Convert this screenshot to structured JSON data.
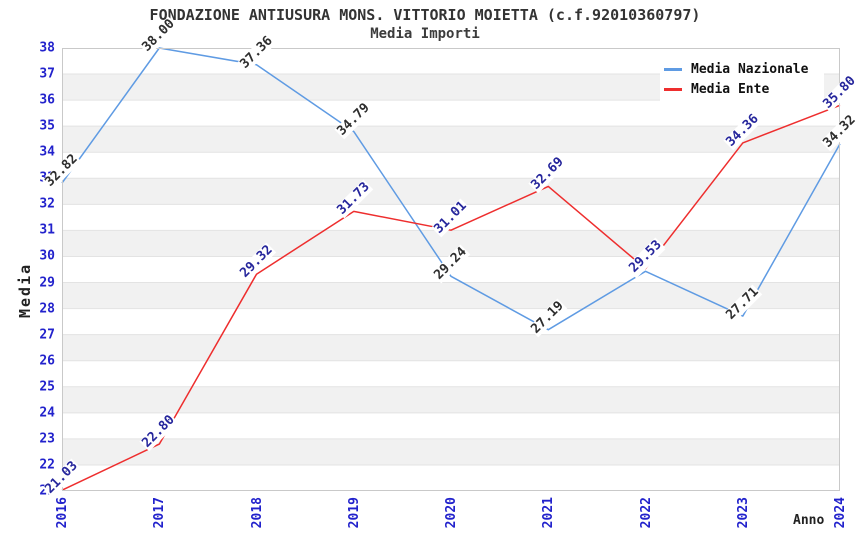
{
  "title": "FONDAZIONE ANTIUSURA MONS. VITTORIO MOIETTA (c.f.92010360797)",
  "subtitle": "Media Importi",
  "chart_data": {
    "type": "line",
    "x": [
      "2016",
      "2017",
      "2018",
      "2019",
      "2020",
      "2021",
      "2022",
      "2023",
      "2024"
    ],
    "xlabel": "Anno",
    "ylabel": "Media",
    "ylim": [
      21,
      38
    ],
    "y_tick_step": 1,
    "grid": "alternating-horizontal-bands",
    "legend_position": "top-right",
    "axis_text_color": "#2222CC",
    "band_color": "#f1f1f1",
    "gridline_color": "#e3e3e3",
    "border_color": "#c9c9c9",
    "series": [
      {
        "name": "Media Nazionale",
        "color": "#5F9BE3",
        "label_color": "#2e2e2e",
        "values": [
          32.82,
          38.0,
          37.36,
          34.79,
          29.24,
          27.19,
          29.43,
          27.71,
          34.32
        ]
      },
      {
        "name": "Media Ente",
        "color": "#EE2E2E",
        "label_color": "#26269C",
        "values": [
          21.03,
          22.8,
          29.32,
          31.73,
          31.01,
          32.69,
          29.53,
          34.36,
          35.8
        ]
      }
    ]
  }
}
